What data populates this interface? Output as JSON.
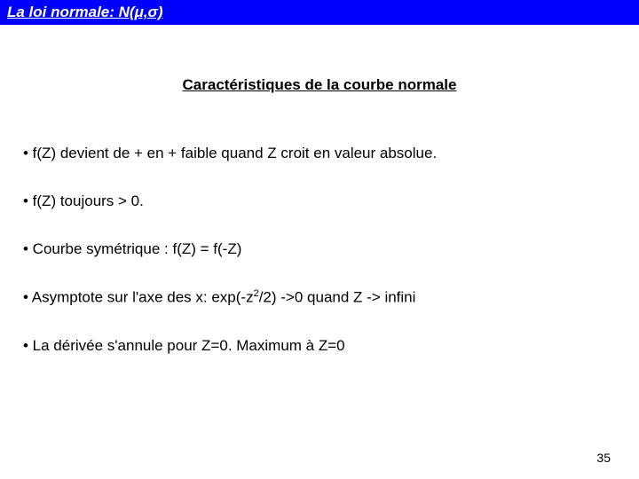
{
  "header": {
    "title": "La loi normale: N(μ,σ)"
  },
  "subtitle": "Caractéristiques de la courbe normale",
  "bullets": {
    "b1": "• f(Z) devient de + en + faible quand Z croit en valeur absolue.",
    "b2": "• f(Z) toujours > 0.",
    "b3": "• Courbe symétrique : f(Z) = f(-Z)",
    "b4_pre": "• Asymptote sur l'axe des x: exp(-z",
    "b4_sup": "2",
    "b4_post": "/2) ->0 quand Z -> infini",
    "b5": "• La dérivée s'annule pour Z=0. Maximum à Z=0"
  },
  "page_number": "35",
  "colors": {
    "header_bg": "#0000ff",
    "header_text": "#ffffff",
    "body_bg": "#ffffff",
    "text": "#000000"
  },
  "typography": {
    "header_fontsize": 17,
    "subtitle_fontsize": 17,
    "bullet_fontsize": 17,
    "page_number_fontsize": 14
  }
}
